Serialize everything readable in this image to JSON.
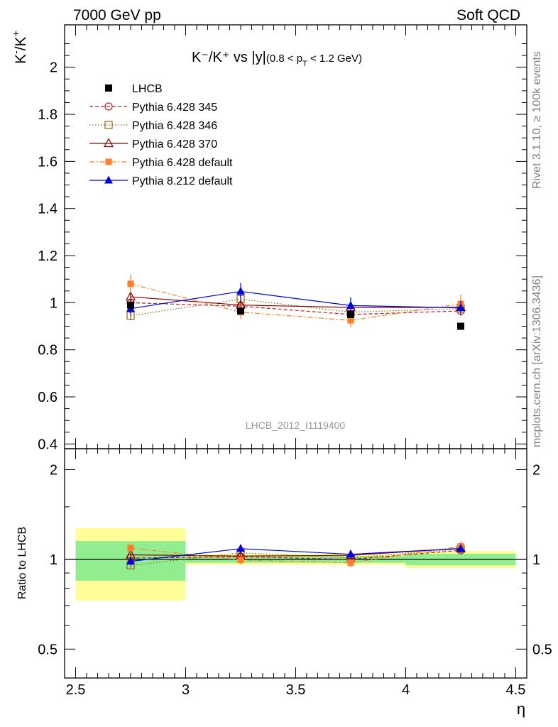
{
  "header": {
    "left": "7000 GeV pp",
    "right": "Soft QCD"
  },
  "side_labels": {
    "rivet": "Rivet 3.1.10, ≥ 100k events",
    "mcplots": "mcplots.cern.ch [arXiv:1306.3436]"
  },
  "watermark": "LHCB_2012_I1119400",
  "chart_data": {
    "type": "scatter",
    "main": {
      "title": "K⁻/K⁺ vs |y|",
      "title_note": "(0.8 < p",
      "title_note_sub": "T",
      "title_note_end": " < 1.2 GeV)",
      "ylabel_main": "K",
      "ylabel_sup1": "-",
      "ylabel_mid": "/K",
      "ylabel_sup2": "+",
      "ylim": [
        0.38,
        2.18
      ],
      "yticks": [
        0.4,
        0.6,
        0.8,
        1,
        1.2,
        1.4,
        1.6,
        1.8,
        2
      ],
      "ytick_labels": [
        "0.4",
        "0.6",
        "0.8",
        "1",
        "1.2",
        "1.4",
        "1.6",
        "1.8",
        "2"
      ]
    },
    "ratio": {
      "ylabel": "Ratio to LHCB",
      "ylim": [
        0.4,
        2.35
      ],
      "log_scale": true,
      "yticks": [
        0.5,
        1,
        2
      ],
      "ytick_labels": [
        "0.5",
        "1",
        "2"
      ]
    },
    "x": {
      "label": "η",
      "range": [
        2.45,
        4.55
      ],
      "ticks": [
        2.5,
        3,
        3.5,
        4,
        4.5
      ],
      "tick_labels": [
        "2.5",
        "3",
        "3.5",
        "4",
        "4.5"
      ],
      "bin_edges": [
        2.5,
        3.0,
        3.5,
        4.0,
        4.5
      ],
      "bin_centers": [
        2.75,
        3.25,
        3.75,
        4.25
      ]
    },
    "reference": {
      "name": "LHCB",
      "values": [
        0.99,
        0.965,
        0.95,
        0.9
      ],
      "stat_band": [
        0.15,
        0.025,
        0.025,
        0.04
      ],
      "total_band": [
        0.27,
        0.04,
        0.04,
        0.06
      ]
    },
    "series": [
      {
        "name": "Pythia 6.428 345",
        "color": "#b22222",
        "marker": "circle-open",
        "dash": "5,3",
        "values": [
          1.0,
          0.985,
          0.95,
          0.965
        ],
        "errors": [
          0.02,
          0.02,
          0.02,
          0.02
        ]
      },
      {
        "name": "Pythia 6.428 346",
        "color": "#8b6914",
        "marker": "square-open",
        "dash": "1.5,2.5",
        "values": [
          0.945,
          1.015,
          0.96,
          0.975
        ],
        "errors": [
          0.02,
          0.02,
          0.02,
          0.02
        ]
      },
      {
        "name": "Pythia 6.428 370",
        "color": "#8b0000",
        "marker": "triangle-open",
        "dash": "",
        "values": [
          1.025,
          0.99,
          0.98,
          0.98
        ],
        "errors": [
          0.025,
          0.02,
          0.02,
          0.02
        ]
      },
      {
        "name": "Pythia 6.428 default",
        "color": "#ff7f2a",
        "marker": "square",
        "dash": "7,3,2,3",
        "values": [
          1.08,
          0.96,
          0.925,
          0.995
        ],
        "errors": [
          0.04,
          0.03,
          0.03,
          0.04
        ]
      },
      {
        "name": "Pythia 8.212 default",
        "color": "#0000dd",
        "marker": "triangle",
        "dash": "",
        "values": [
          0.975,
          1.048,
          0.988,
          0.978
        ],
        "errors": [
          0.025,
          0.035,
          0.035,
          0.03
        ]
      }
    ],
    "colors": {
      "stat_band": "#90ee90",
      "total_band": "#ffff99",
      "reference": "#000000"
    }
  }
}
